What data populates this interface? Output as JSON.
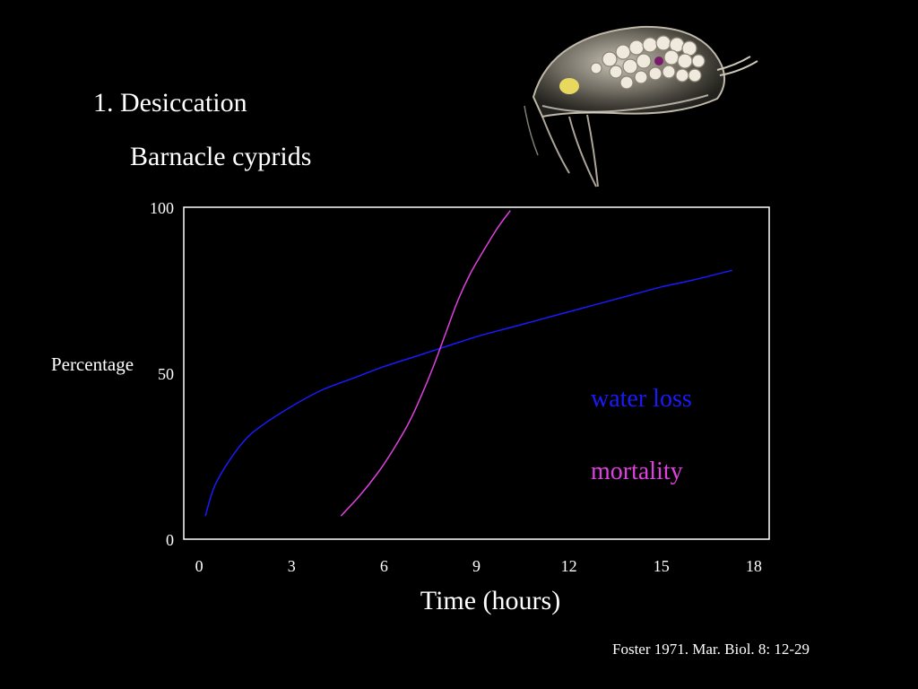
{
  "slide": {
    "heading": "1. Desiccation",
    "subheading": "Barnacle cyprids",
    "citation": "Foster 1971. Mar. Biol. 8: 12-29"
  },
  "chart_data": {
    "type": "line",
    "title": "",
    "xlabel": "Time (hours)",
    "ylabel": "Percentage",
    "xlim": [
      -0.5,
      18.5
    ],
    "ylim": [
      0,
      100
    ],
    "x_ticks": [
      0,
      3,
      6,
      9,
      12,
      15,
      18
    ],
    "y_ticks": [
      0,
      50,
      100
    ],
    "grid": false,
    "legend_position": "right",
    "series": [
      {
        "name": "water loss",
        "color": "#1a1aff",
        "x": [
          0.2,
          0.5,
          1.0,
          1.5,
          2.0,
          3.0,
          4.0,
          5.0,
          6.0,
          7.0,
          8.0,
          9.0,
          10.0,
          11.0,
          12.0,
          13.0,
          14.0,
          15.0,
          16.0,
          17.3
        ],
        "y": [
          7,
          16,
          24,
          30,
          34,
          40,
          45,
          48.5,
          52,
          55,
          58,
          61,
          63.5,
          66,
          68.5,
          71,
          73.5,
          76,
          78,
          81
        ]
      },
      {
        "name": "mortality",
        "color": "#e040e0",
        "x": [
          4.6,
          5.2,
          5.8,
          6.3,
          6.8,
          7.2,
          7.6,
          8.0,
          8.4,
          8.8,
          9.3,
          9.7,
          10.1
        ],
        "y": [
          7,
          13,
          20,
          27,
          35,
          43,
          52,
          62,
          72,
          80,
          88,
          94,
          99
        ]
      }
    ]
  }
}
